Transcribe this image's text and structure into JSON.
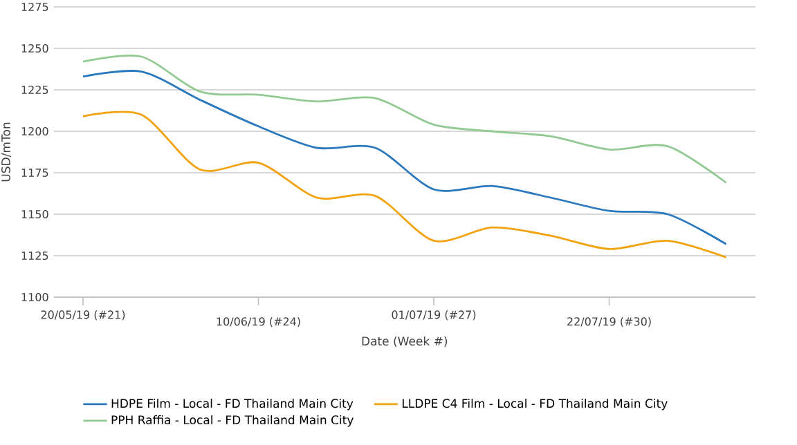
{
  "chart_data": {
    "type": "line",
    "xlabel": "Date (Week #)",
    "ylabel": "USD/mTon",
    "categories": [
      "20/05/19 (#21)",
      null,
      null,
      "10/06/19 (#24)",
      null,
      null,
      "01/07/19 (#27)",
      null,
      null,
      "22/07/19 (#30)",
      null,
      null
    ],
    "series": [
      {
        "name": "HDPE Film - Local - FD Thailand Main City",
        "color": "#2a78bd",
        "values": [
          1233,
          1236,
          1219,
          1203,
          1190,
          1190,
          1165,
          1167,
          1160,
          1152,
          1150,
          1132
        ]
      },
      {
        "name": "LLDPE C4 Film - Local - FD Thailand Main City",
        "color": "#f2a20c",
        "values": [
          1209,
          1210,
          1177,
          1181,
          1160,
          1161,
          1134,
          1142,
          1137,
          1129,
          1134,
          1124
        ]
      },
      {
        "name": "PPH Raffia - Local - FD Thailand Main City",
        "color": "#93c993",
        "values": [
          1242,
          1245,
          1224,
          1222,
          1218,
          1220,
          1204,
          1200,
          1197,
          1189,
          1191,
          1169
        ]
      }
    ],
    "ylim": [
      1100,
      1275
    ],
    "yticks": [
      1100,
      1125,
      1150,
      1175,
      1200,
      1225,
      1250,
      1275
    ],
    "grid": "y",
    "legend": "bottom",
    "marker": "none",
    "line_style": "solid"
  }
}
